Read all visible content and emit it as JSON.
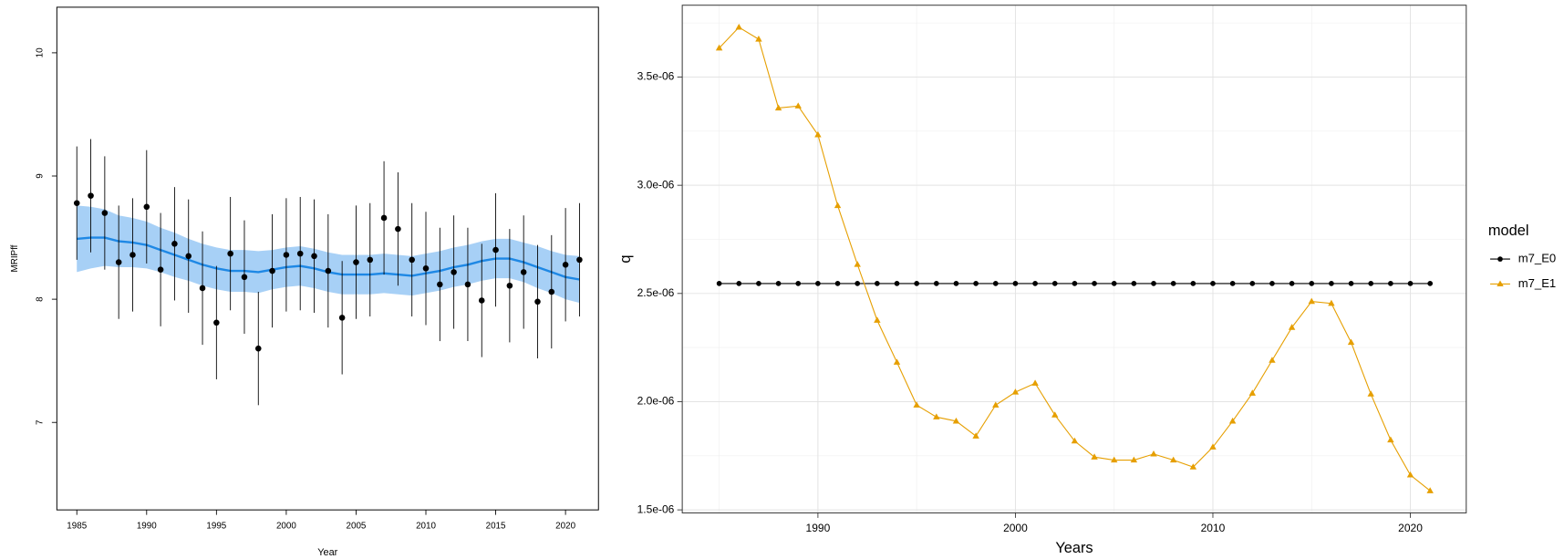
{
  "chart_data": [
    {
      "type": "scatter",
      "x": [
        1985,
        1986,
        1987,
        1988,
        1989,
        1990,
        1991,
        1992,
        1993,
        1994,
        1995,
        1996,
        1997,
        1998,
        1999,
        2000,
        2001,
        2002,
        2003,
        2004,
        2005,
        2006,
        2007,
        2008,
        2009,
        2010,
        2011,
        2012,
        2013,
        2014,
        2015,
        2016,
        2017,
        2018,
        2019,
        2020,
        2021
      ],
      "values": [
        8.78,
        8.84,
        8.7,
        8.3,
        8.36,
        8.75,
        8.24,
        8.45,
        8.35,
        8.09,
        7.81,
        8.37,
        8.18,
        7.6,
        8.23,
        8.36,
        8.37,
        8.35,
        8.23,
        7.85,
        8.3,
        8.32,
        8.66,
        8.57,
        8.32,
        8.25,
        8.12,
        8.22,
        8.12,
        7.99,
        8.4,
        8.11,
        8.22,
        7.98,
        8.06,
        8.28,
        8.32
      ],
      "errors": [
        0.46,
        0.46,
        0.46,
        0.46,
        0.46,
        0.46,
        0.46,
        0.46,
        0.46,
        0.46,
        0.46,
        0.46,
        0.46,
        0.46,
        0.46,
        0.46,
        0.46,
        0.46,
        0.46,
        0.46,
        0.46,
        0.46,
        0.46,
        0.46,
        0.46,
        0.46,
        0.46,
        0.46,
        0.46,
        0.46,
        0.46,
        0.46,
        0.46,
        0.46,
        0.46,
        0.46,
        0.46
      ],
      "point_color": "#000000",
      "fit": {
        "color": "#1E88E5",
        "band_color": "#9DCBF5",
        "values": [
          8.49,
          8.5,
          8.5,
          8.47,
          8.46,
          8.44,
          8.4,
          8.36,
          8.32,
          8.28,
          8.25,
          8.23,
          8.23,
          8.22,
          8.24,
          8.26,
          8.27,
          8.25,
          8.22,
          8.2,
          8.2,
          8.2,
          8.21,
          8.2,
          8.19,
          8.21,
          8.23,
          8.26,
          8.28,
          8.31,
          8.33,
          8.33,
          8.3,
          8.26,
          8.22,
          8.18,
          8.16
        ],
        "lower": [
          8.22,
          8.25,
          8.27,
          8.26,
          8.26,
          8.25,
          8.22,
          8.18,
          8.15,
          8.11,
          8.08,
          8.06,
          8.06,
          8.05,
          8.08,
          8.1,
          8.11,
          8.09,
          8.06,
          8.04,
          8.04,
          8.04,
          8.05,
          8.04,
          8.03,
          8.05,
          8.07,
          8.1,
          8.12,
          8.15,
          8.17,
          8.17,
          8.14,
          8.09,
          8.05,
          8.0,
          7.97
        ],
        "upper": [
          8.76,
          8.75,
          8.73,
          8.68,
          8.66,
          8.63,
          8.58,
          8.54,
          8.49,
          8.45,
          8.42,
          8.4,
          8.4,
          8.39,
          8.4,
          8.42,
          8.43,
          8.41,
          8.38,
          8.36,
          8.36,
          8.36,
          8.37,
          8.36,
          8.35,
          8.37,
          8.39,
          8.42,
          8.44,
          8.47,
          8.49,
          8.49,
          8.46,
          8.43,
          8.39,
          8.36,
          8.35
        ]
      },
      "xlim": [
        1983.57,
        2022.36
      ],
      "xticks": [
        1985,
        1990,
        1995,
        2000,
        2005,
        2010,
        2015,
        2020
      ],
      "ylim": [
        6.29,
        10.37
      ],
      "yticks": [
        7,
        8,
        9,
        10
      ],
      "x_label": "Year",
      "y_label": "MRIPff",
      "grid": false
    },
    {
      "type": "line",
      "x": [
        1985,
        1986,
        1987,
        1988,
        1989,
        1990,
        1991,
        1992,
        1993,
        1994,
        1995,
        1996,
        1997,
        1998,
        1999,
        2000,
        2001,
        2002,
        2003,
        2004,
        2005,
        2006,
        2007,
        2008,
        2009,
        2010,
        2011,
        2012,
        2013,
        2014,
        2015,
        2016,
        2017,
        2018,
        2019,
        2020,
        2021
      ],
      "series": [
        {
          "name": "m7_E0",
          "color": "#000000",
          "marker": "circle",
          "values": [
            2.546e-06,
            2.546e-06,
            2.546e-06,
            2.546e-06,
            2.546e-06,
            2.546e-06,
            2.546e-06,
            2.546e-06,
            2.546e-06,
            2.546e-06,
            2.546e-06,
            2.546e-06,
            2.546e-06,
            2.546e-06,
            2.546e-06,
            2.546e-06,
            2.546e-06,
            2.546e-06,
            2.546e-06,
            2.546e-06,
            2.546e-06,
            2.546e-06,
            2.546e-06,
            2.546e-06,
            2.546e-06,
            2.546e-06,
            2.546e-06,
            2.546e-06,
            2.546e-06,
            2.546e-06,
            2.546e-06,
            2.546e-06,
            2.546e-06,
            2.546e-06,
            2.546e-06,
            2.546e-06,
            2.546e-06
          ]
        },
        {
          "name": "m7_E1",
          "color": "#E69F00",
          "marker": "triangle",
          "values": [
            3.634e-06,
            3.73e-06,
            3.675e-06,
            3.357e-06,
            3.366e-06,
            3.233e-06,
            2.906e-06,
            2.634e-06,
            2.376e-06,
            2.182e-06,
            1.984e-06,
            1.929e-06,
            1.91e-06,
            1.841e-06,
            1.984e-06,
            2.044e-06,
            2.085e-06,
            1.938e-06,
            1.818e-06,
            1.744e-06,
            1.73e-06,
            1.73e-06,
            1.758e-06,
            1.73e-06,
            1.698e-06,
            1.79e-06,
            1.91e-06,
            2.039e-06,
            2.191e-06,
            2.343e-06,
            2.463e-06,
            2.454e-06,
            2.274e-06,
            2.035e-06,
            1.823e-06,
            1.661e-06,
            1.588e-06
          ]
        }
      ],
      "xlim": [
        1983.13,
        2022.83
      ],
      "xticks": [
        1990,
        2000,
        2010,
        2020
      ],
      "ylim": [
        1.486e-06,
        3.832e-06
      ],
      "yticks": [
        {
          "value": 1.5e-06,
          "label": "1.5e-06"
        },
        {
          "value": 2e-06,
          "label": "2.0e-06"
        },
        {
          "value": 2.5e-06,
          "label": "2.5e-06"
        },
        {
          "value": 3e-06,
          "label": "3.0e-06"
        },
        {
          "value": 3.5e-06,
          "label": "3.5e-06"
        }
      ],
      "x_label": "Years",
      "y_label": "q",
      "grid": true,
      "legend_title": "model",
      "legend_position": "right"
    }
  ]
}
